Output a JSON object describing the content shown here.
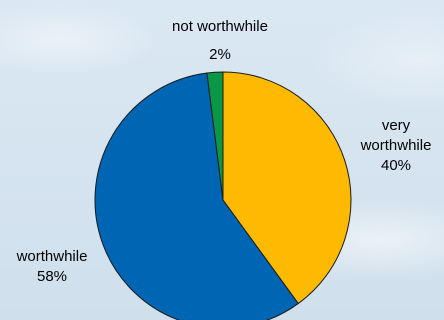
{
  "chart_data": {
    "type": "pie",
    "slices": [
      {
        "label": "very\nworthwhile",
        "label_lines": [
          "very",
          "worthwhile"
        ],
        "percent_label": "40%",
        "value": 40,
        "color": "#FDBA00"
      },
      {
        "label": "worthwhile",
        "label_lines": [
          "worthwhile"
        ],
        "percent_label": "58%",
        "value": 58,
        "color": "#0065B3"
      },
      {
        "label": "not worthwhile",
        "label_lines": [
          "not worthwhile"
        ],
        "percent_label": "2%",
        "value": 2,
        "color": "#0A9747"
      }
    ],
    "start_angle": "12 o'clock",
    "direction": "clockwise",
    "legend": "none"
  }
}
